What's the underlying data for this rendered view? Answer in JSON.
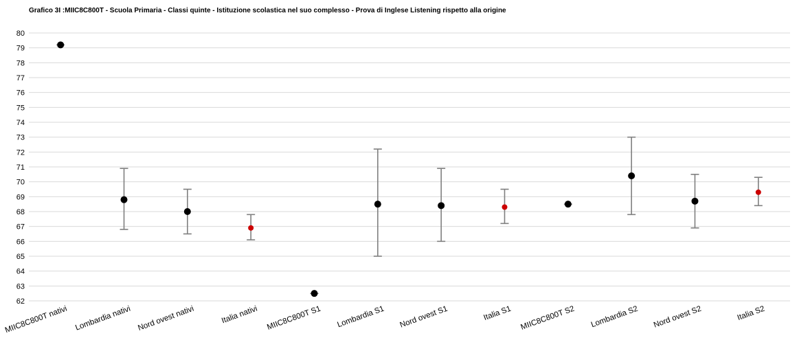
{
  "chart_data": {
    "type": "scatter",
    "title": "Grafico 3I :MIIC8C800T - Scuola Primaria - Classi quinte - Istituzione scolastica nel suo complesso - Prova di Inglese Listening rispetto alla  origine",
    "xlabel": "",
    "ylabel": "",
    "ylim": [
      62,
      80
    ],
    "yticks": [
      62,
      63,
      64,
      65,
      66,
      67,
      68,
      69,
      70,
      71,
      72,
      73,
      74,
      75,
      76,
      77,
      78,
      79,
      80
    ],
    "grid": true,
    "legend": "none",
    "categories": [
      "MIIC8C800T nativi",
      "Lombardia nativi",
      "Nord ovest nativi",
      "Italia nativi",
      "MIIC8C800T S1",
      "Lombardia S1",
      "Nord ovest S1",
      "Italia S1",
      "MIIC8C800T S2",
      "Lombardia S2",
      "Nord ovest S2",
      "Italia S2"
    ],
    "values": [
      79.2,
      68.8,
      68.0,
      66.9,
      62.5,
      68.5,
      68.4,
      68.3,
      68.5,
      70.4,
      68.7,
      69.3
    ],
    "error_low": [
      79.2,
      66.8,
      66.5,
      66.1,
      62.5,
      65.0,
      66.0,
      67.2,
      68.5,
      67.8,
      66.9,
      68.4
    ],
    "error_high": [
      79.2,
      70.9,
      69.5,
      67.8,
      62.5,
      72.2,
      70.9,
      69.5,
      68.5,
      73.0,
      70.5,
      70.3
    ],
    "point_colors": [
      "#000000",
      "#000000",
      "#000000",
      "#cc0000",
      "#000000",
      "#000000",
      "#000000",
      "#cc0000",
      "#000000",
      "#000000",
      "#000000",
      "#cc0000"
    ],
    "errorbar_color": "#7f7f7f",
    "grid_color": "#d9d9d9"
  }
}
